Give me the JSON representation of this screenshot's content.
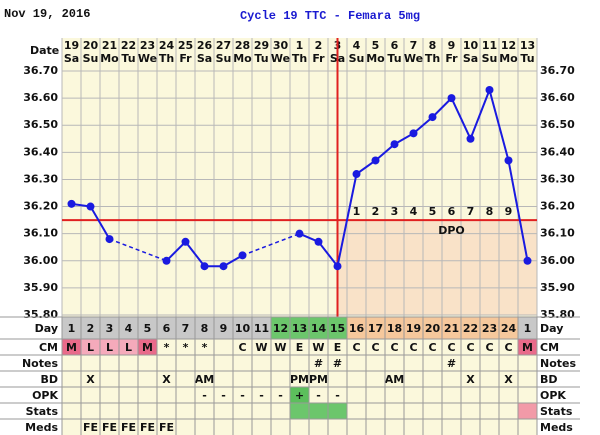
{
  "chart_data": {
    "type": "line",
    "title": "Cycle 19 TTC - Femara 5mg",
    "date": "Nov 19, 2016",
    "date_label": "Date",
    "categories": [
      "19",
      "20",
      "21",
      "22",
      "23",
      "24",
      "25",
      "26",
      "27",
      "28",
      "29",
      "30",
      "1",
      "2",
      "3",
      "4",
      "5",
      "6",
      "7",
      "8",
      "9",
      "10",
      "11",
      "12",
      "13"
    ],
    "weekdays": [
      "Sa",
      "Su",
      "Mo",
      "Tu",
      "We",
      "Th",
      "Fr",
      "Sa",
      "Su",
      "Mo",
      "Tu",
      "We",
      "Th",
      "Fr",
      "Sa",
      "Su",
      "Mo",
      "Tu",
      "We",
      "Th",
      "Fr",
      "Sa",
      "Su",
      "Mo",
      "Tu"
    ],
    "values": [
      36.21,
      36.2,
      36.08,
      null,
      null,
      36.0,
      36.07,
      35.98,
      35.98,
      36.02,
      null,
      null,
      36.1,
      36.07,
      35.98,
      36.32,
      36.37,
      36.43,
      36.47,
      36.53,
      36.6,
      36.45,
      36.63,
      36.37,
      36.0
    ],
    "color": "#1a1ae0",
    "ylim": [
      35.8,
      36.7
    ],
    "yticks": [
      {
        "value": 35.8,
        "label": "35.80"
      },
      {
        "value": 35.9,
        "label": "35.90"
      },
      {
        "value": 36.0,
        "label": "36.00"
      },
      {
        "value": 36.1,
        "label": "36.10"
      },
      {
        "value": 36.2,
        "label": "36.20"
      },
      {
        "value": 36.3,
        "label": "36.30"
      },
      {
        "value": 36.4,
        "label": "36.40"
      },
      {
        "value": 36.5,
        "label": "36.50"
      },
      {
        "value": 36.6,
        "label": "36.60"
      },
      {
        "value": 36.7,
        "label": "36.70"
      }
    ],
    "grid": true,
    "coverline": 36.15,
    "ovulation_day": 15,
    "dpo_labels": [
      "1",
      "2",
      "3",
      "4",
      "5",
      "6",
      "7",
      "8",
      "9"
    ],
    "dpo_title": "DPO"
  },
  "table": {
    "row_labels": [
      "Day",
      "CM",
      "Notes",
      "BD",
      "OPK",
      "Stats",
      "Meds"
    ],
    "rows": [
      [
        1,
        2,
        3,
        4,
        5,
        6,
        7,
        8,
        9,
        10,
        11,
        12,
        13,
        14,
        15,
        16,
        17,
        18,
        19,
        20,
        21,
        22,
        23,
        24,
        1
      ],
      [
        "M",
        "L",
        "L",
        "L",
        "M",
        "*",
        "*",
        "*",
        null,
        "C",
        "W",
        "W",
        "E",
        "W",
        "E",
        "C",
        "C",
        "C",
        "C",
        "C",
        "C",
        "C",
        "C",
        "C",
        "M"
      ],
      [
        null,
        null,
        null,
        null,
        null,
        null,
        null,
        null,
        null,
        null,
        null,
        null,
        null,
        "#",
        "#",
        null,
        null,
        null,
        null,
        null,
        "#",
        null,
        null,
        null,
        null
      ],
      [
        null,
        "X",
        null,
        null,
        null,
        "X",
        null,
        "AM",
        null,
        null,
        null,
        null,
        "PM",
        "PM",
        null,
        null,
        null,
        "AM",
        null,
        null,
        null,
        "X",
        null,
        "X",
        null
      ],
      [
        null,
        null,
        null,
        null,
        null,
        null,
        null,
        "-",
        "-",
        "-",
        "-",
        "-",
        "+",
        "-",
        "-",
        null,
        null,
        null,
        null,
        null,
        null,
        null,
        null,
        null,
        null
      ],
      [
        null,
        null,
        null,
        null,
        null,
        null,
        null,
        null,
        null,
        null,
        null,
        null,
        null,
        null,
        null,
        null,
        null,
        null,
        null,
        null,
        null,
        null,
        null,
        null,
        null
      ],
      [
        null,
        "FE",
        "FE",
        "FE",
        "FE",
        "FE",
        null,
        null,
        null,
        null,
        null,
        null,
        null,
        null,
        null,
        null,
        null,
        null,
        null,
        null,
        null,
        null,
        null,
        null,
        null
      ]
    ]
  }
}
